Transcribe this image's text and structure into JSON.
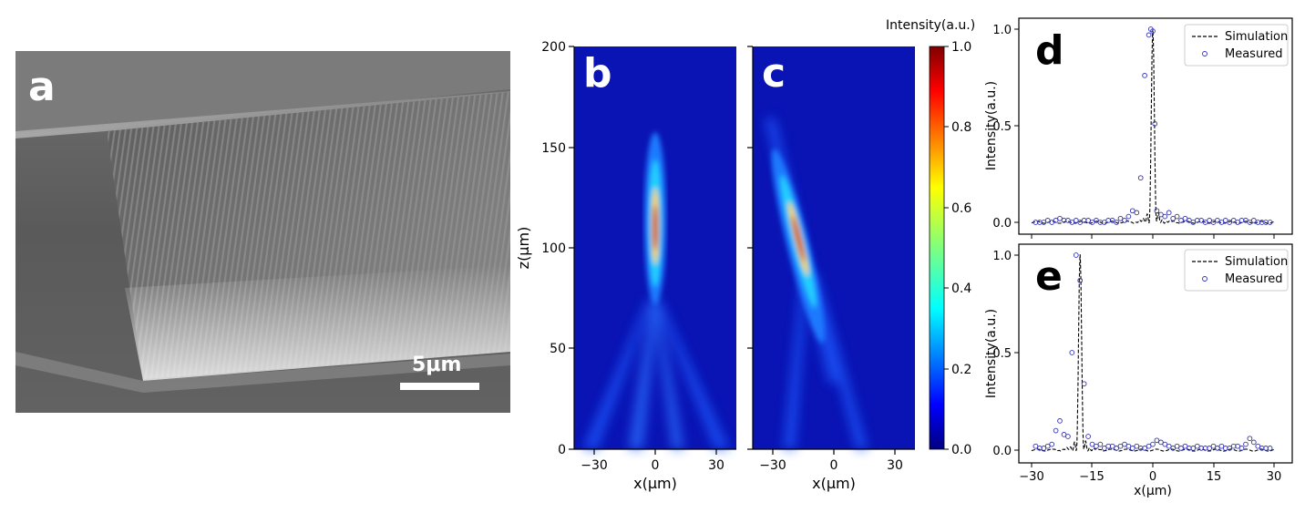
{
  "panels": {
    "a": {
      "letter": "a",
      "scale_bar": "5μm"
    },
    "b": {
      "letter": "b"
    },
    "c": {
      "letter": "c"
    },
    "d": {
      "letter": "d"
    },
    "e": {
      "letter": "e"
    }
  },
  "colorbar": {
    "label": "Intensity(a.u.)",
    "ticks": [
      "0.0",
      "0.2",
      "0.4",
      "0.6",
      "0.8",
      "1.0"
    ]
  },
  "heatmaps": {
    "xlabel": "x(μm)",
    "ylabel": "z(μm)",
    "xticks": [
      "−30",
      "0",
      "30"
    ],
    "yticks": [
      "0",
      "50",
      "100",
      "150",
      "200"
    ]
  },
  "profiles": {
    "ylabel": "Intensity(a.u.)",
    "xlabel": "x(μm)",
    "xticks": [
      "−30",
      "−15",
      "0",
      "15",
      "30"
    ],
    "yticks": [
      "0.0",
      "0.5",
      "1.0"
    ],
    "legend": [
      "Simulation",
      "Measured"
    ]
  },
  "chart_data": [
    {
      "type": "heatmap",
      "panel": "b",
      "xlabel": "x(μm)",
      "ylabel": "z(μm)",
      "xlim": [
        -40,
        40
      ],
      "ylim": [
        0,
        200
      ],
      "xticks": [
        -30,
        0,
        30
      ],
      "yticks": [
        0,
        50,
        100,
        150,
        200
      ],
      "focus": {
        "x": 0,
        "z": 110,
        "peak": 1.0
      },
      "colormap": "jet"
    },
    {
      "type": "heatmap",
      "panel": "c",
      "xlabel": "x(μm)",
      "xlim": [
        -40,
        40
      ],
      "ylim": [
        0,
        200
      ],
      "xticks": [
        -30,
        0,
        30
      ],
      "focus": {
        "x": -18,
        "z": 100,
        "peak": 1.0
      },
      "colormap": "jet",
      "colorbar": {
        "label": "Intensity(a.u.)",
        "range": [
          0,
          1.0
        ],
        "ticks": [
          0.0,
          0.2,
          0.4,
          0.6,
          0.8,
          1.0
        ]
      }
    },
    {
      "type": "line",
      "panel": "d",
      "ylabel": "Intensity(a.u.)",
      "xlim": [
        -30,
        30
      ],
      "ylim": [
        0,
        1.0
      ],
      "yticks": [
        0.0,
        0.5,
        1.0
      ],
      "legend": "top-right",
      "series": [
        {
          "name": "Simulation",
          "style": "dashed",
          "peak_x": 0,
          "peak_y": 1.0
        },
        {
          "name": "Measured",
          "style": "markers",
          "x": [
            -29,
            -28,
            -27,
            -26,
            -25,
            -24,
            -23,
            -22,
            -21,
            -20,
            -19,
            -18,
            -17,
            -16,
            -15,
            -14,
            -13,
            -12,
            -11,
            -10,
            -9,
            -8,
            -7,
            -6,
            -5,
            -4,
            -3,
            -2,
            -1,
            -0.5,
            0,
            0.5,
            1,
            2,
            3,
            4,
            5,
            6,
            7,
            8,
            9,
            10,
            11,
            12,
            13,
            14,
            15,
            16,
            17,
            18,
            19,
            20,
            21,
            22,
            23,
            24,
            25,
            26,
            27,
            28,
            29
          ],
          "y": [
            0.0,
            0.0,
            0.0,
            0.01,
            0.0,
            0.01,
            0.02,
            0.01,
            0.01,
            0.0,
            0.01,
            0.0,
            0.01,
            0.01,
            0.0,
            0.01,
            0.0,
            0.0,
            0.01,
            0.01,
            0.0,
            0.02,
            0.01,
            0.03,
            0.06,
            0.05,
            0.23,
            0.76,
            0.97,
            1.0,
            0.99,
            0.51,
            0.06,
            0.04,
            0.03,
            0.05,
            0.02,
            0.03,
            0.01,
            0.02,
            0.01,
            0.0,
            0.01,
            0.01,
            0.0,
            0.01,
            0.0,
            0.01,
            0.0,
            0.01,
            0.0,
            0.01,
            0.0,
            0.01,
            0.01,
            0.0,
            0.01,
            0.0,
            0.0,
            0.0,
            0.0
          ]
        }
      ]
    },
    {
      "type": "line",
      "panel": "e",
      "ylabel": "Intensity(a.u.)",
      "xlabel": "x(μm)",
      "xlim": [
        -30,
        30
      ],
      "ylim": [
        0,
        1.0
      ],
      "xticks": [
        -30,
        -15,
        0,
        15,
        30
      ],
      "yticks": [
        0.0,
        0.5,
        1.0
      ],
      "legend": "top-right",
      "series": [
        {
          "name": "Simulation",
          "style": "dashed",
          "peak_x": -18,
          "peak_y": 1.0
        },
        {
          "name": "Measured",
          "style": "markers",
          "x": [
            -29,
            -28,
            -27,
            -26,
            -25,
            -24,
            -23,
            -22,
            -21,
            -20,
            -19,
            -18,
            -17,
            -16,
            -15,
            -14,
            -13,
            -12,
            -11,
            -10,
            -9,
            -8,
            -7,
            -6,
            -5,
            -4,
            -3,
            -2,
            -1,
            0,
            1,
            2,
            3,
            4,
            5,
            6,
            7,
            8,
            9,
            10,
            11,
            12,
            13,
            14,
            15,
            16,
            17,
            18,
            19,
            20,
            21,
            22,
            23,
            24,
            25,
            26,
            27,
            28,
            29
          ],
          "y": [
            0.02,
            0.01,
            0.01,
            0.02,
            0.03,
            0.1,
            0.15,
            0.08,
            0.07,
            0.5,
            1.0,
            0.87,
            0.34,
            0.07,
            0.03,
            0.02,
            0.03,
            0.01,
            0.02,
            0.02,
            0.01,
            0.02,
            0.03,
            0.02,
            0.01,
            0.02,
            0.01,
            0.01,
            0.02,
            0.03,
            0.05,
            0.04,
            0.03,
            0.02,
            0.01,
            0.02,
            0.01,
            0.02,
            0.01,
            0.01,
            0.02,
            0.01,
            0.01,
            0.01,
            0.02,
            0.01,
            0.02,
            0.01,
            0.01,
            0.02,
            0.02,
            0.01,
            0.03,
            0.06,
            0.04,
            0.02,
            0.01,
            0.01,
            0.01
          ]
        }
      ]
    }
  ]
}
